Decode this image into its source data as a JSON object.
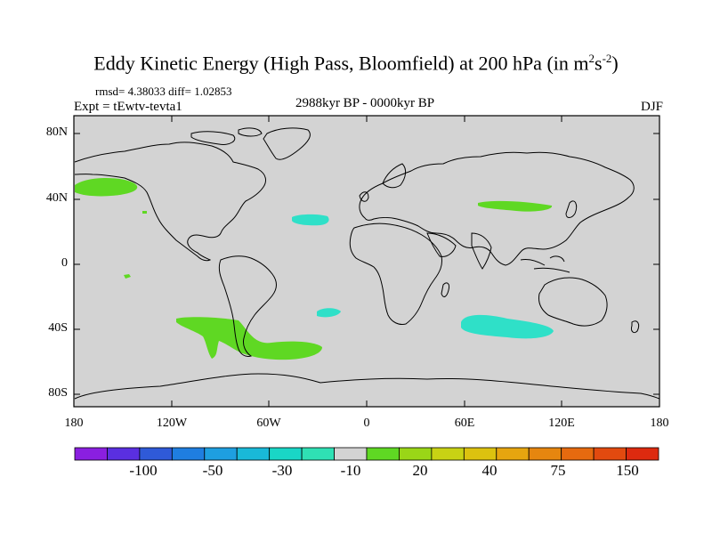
{
  "title": {
    "main": "Eddy Kinetic Energy (High Pass, Bloomfield) at 200 hPa (in m",
    "sup1": "2",
    "mid": "s",
    "sup2": "-2",
    "end": ")"
  },
  "stats": "rmsd= 4.38033 diff= 1.02853",
  "experiment": "Expt = tEwtv-tevta1",
  "period": "2988kyr BP - 0000kyr BP",
  "season": "DJF",
  "lat_labels": [
    "80N",
    "40N",
    "0",
    "40S",
    "80S"
  ],
  "lon_labels": [
    "180",
    "120W",
    "60W",
    "0",
    "60E",
    "120E",
    "180"
  ],
  "colorbar": {
    "colors": [
      "#8a1fe0",
      "#5a2fe0",
      "#2f5ad8",
      "#1f7ee0",
      "#1e9fe0",
      "#19b9d8",
      "#19d6c6",
      "#2fe0b4",
      "#d3d3d3",
      "#5fd823",
      "#9ad617",
      "#c8d214",
      "#dcc20f",
      "#e6a50f",
      "#e6860f",
      "#e66a0f",
      "#e24a0f",
      "#dd2a0f"
    ],
    "labels": [
      "-100",
      "-50",
      "-30",
      "-10",
      "20",
      "40",
      "75",
      "150"
    ]
  },
  "anomalies": {
    "positive_color": "#5fd823",
    "negative_color": "#2fe0c8"
  }
}
